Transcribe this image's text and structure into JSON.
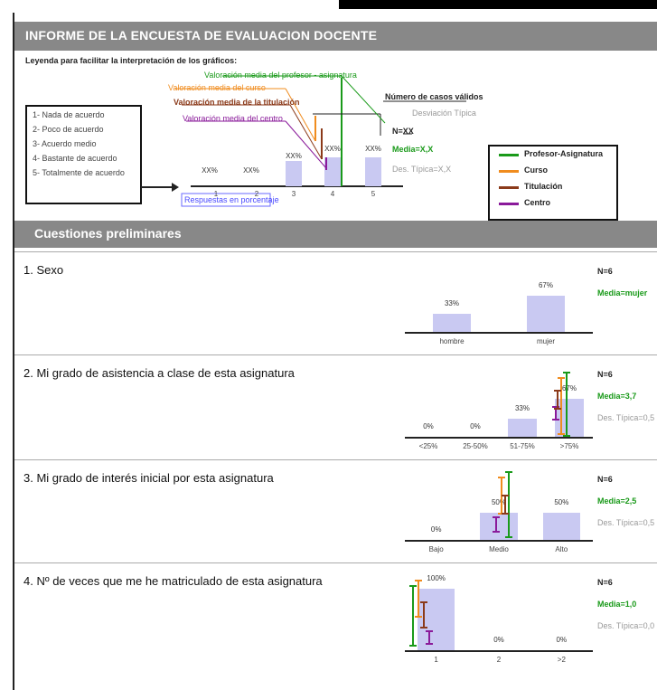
{
  "header": {
    "title": "INFORME DE LA ENCUESTA DE EVALUACION DOCENTE"
  },
  "legend": {
    "title": "Leyenda para facilitar la interpretación de los gráficos:",
    "scale": [
      "1- Nada de acuerdo",
      "2- Poco de acuerdo",
      "3- Acuerdo medio",
      "4- Bastante de acuerdo",
      "5- Totalmente de acuerdo"
    ],
    "annotations": {
      "profesor": "Valoración media del profesor - asignatura",
      "curso": "Valoración media del curso",
      "titulacion": "Valoración media de la titulación",
      "centro": "Valoración media del centro",
      "n_valid": "Número de casos válidos",
      "desv": "Desviación Típica",
      "n": "N=XX",
      "media": "Media=X,X",
      "dt": "Des. Típica=X,X",
      "respuestas": "Respuestas en porcentaje",
      "pcts": [
        "XX%",
        "XX%",
        "XX%",
        "XX%",
        "XX%"
      ],
      "ticks": [
        "1",
        "2",
        "3",
        "4",
        "5"
      ]
    },
    "key": [
      {
        "label": "Profesor-Asignatura",
        "color": "#1a9a1a"
      },
      {
        "label": "Curso",
        "color": "#f08c1e"
      },
      {
        "label": "Titulación",
        "color": "#8b3a1a"
      },
      {
        "label": "Centro",
        "color": "#8a1a9a"
      }
    ]
  },
  "section": {
    "title": "Cuestiones preliminares"
  },
  "questions": [
    {
      "title": "1. Sexo",
      "categories": [
        "hombre",
        "mujer"
      ],
      "values": [
        33,
        67
      ],
      "pcts": [
        "33%",
        "67%"
      ],
      "n": "N=6",
      "media": "Media=mujer",
      "dt": ""
    },
    {
      "title": "2. Mi grado de asistencia a clase de esta asignatura",
      "categories": [
        "<25%",
        "25-50%",
        "51-75%",
        ">75%"
      ],
      "values": [
        0,
        0,
        33,
        67
      ],
      "pcts": [
        "0%",
        "0%",
        "33%",
        "67%"
      ],
      "n": "N=6",
      "media": "Media=3,7",
      "dt": "Des. Típica=0,5"
    },
    {
      "title": "3. Mi grado de interés inicial por esta asignatura",
      "categories": [
        "Bajo",
        "Medio",
        "Alto"
      ],
      "values": [
        0,
        50,
        50
      ],
      "pcts": [
        "0%",
        "50%",
        "50%"
      ],
      "n": "N=6",
      "media": "Media=2,5",
      "dt": "Des. Típica=0,5"
    },
    {
      "title": "4. Nº de veces que me he matriculado de esta asignatura",
      "categories": [
        "1",
        "2",
        ">2"
      ],
      "values": [
        100,
        0,
        0
      ],
      "pcts": [
        "100%",
        "0%",
        "0%"
      ],
      "n": "N=6",
      "media": "Media=1,0",
      "dt": "Des. Típica=0,0"
    }
  ]
}
